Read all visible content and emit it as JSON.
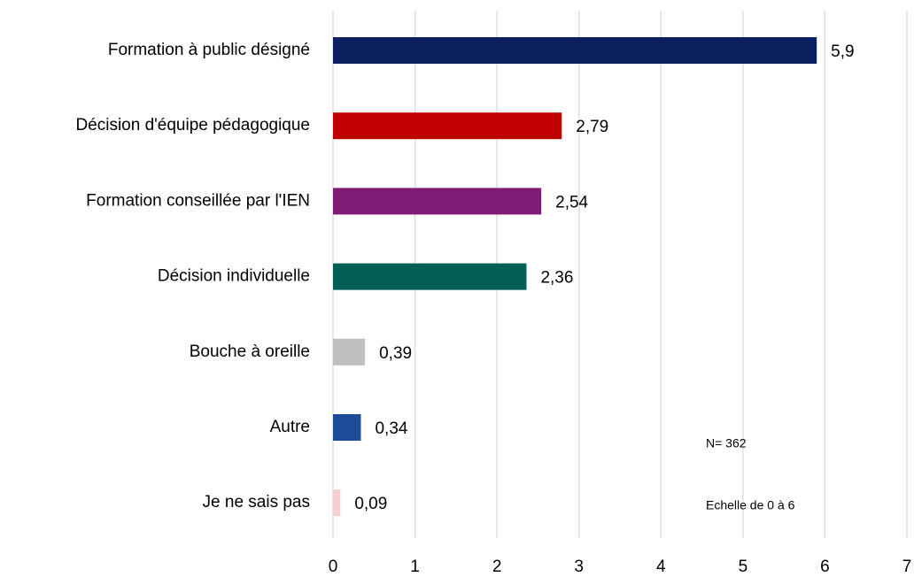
{
  "chart_data": {
    "type": "bar",
    "orientation": "horizontal",
    "categories": [
      "Formation à public désigné",
      "Décision d'équipe pédagogique",
      "Formation conseillée par l'IEN",
      "Décision individuelle",
      "Bouche à oreille",
      "Autre",
      "Je ne sais pas"
    ],
    "values": [
      5.9,
      2.79,
      2.54,
      2.36,
      0.39,
      0.34,
      0.09
    ],
    "value_labels": [
      "5,9",
      "2,79",
      "2,54",
      "2,36",
      "0,39",
      "0,34",
      "0,09"
    ],
    "colors": [
      "#0c1f5e",
      "#c00000",
      "#7f1a75",
      "#035e56",
      "#bfbfbf",
      "#1e4b97",
      "#f6cfd1"
    ],
    "xlim": [
      0,
      7
    ],
    "xticks": [
      0,
      1,
      2,
      3,
      4,
      5,
      6,
      7
    ],
    "grid": true,
    "annotations": [
      "N= 362",
      "Echelle de 0 à 6"
    ]
  }
}
